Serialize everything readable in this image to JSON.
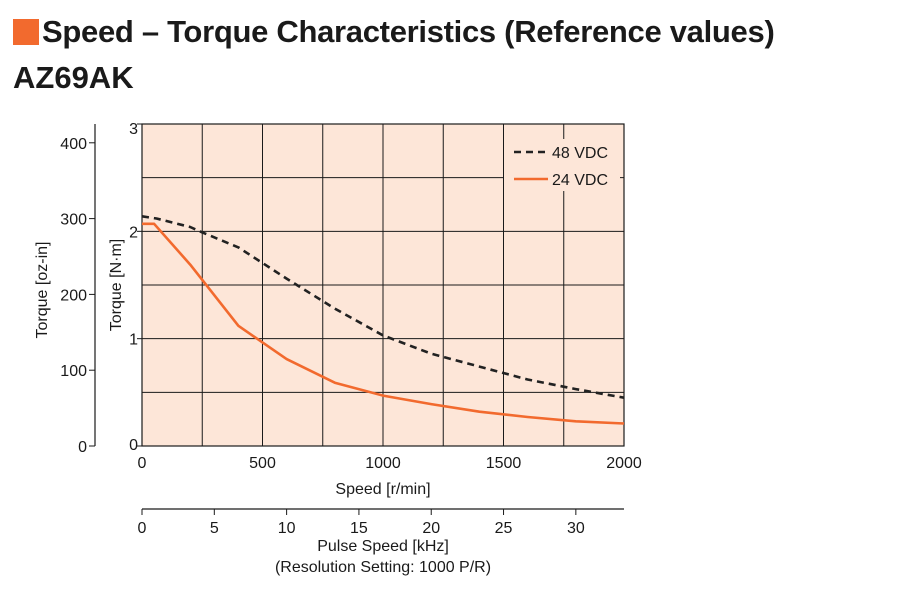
{
  "header": {
    "title": "Speed – Torque Characteristics (Reference values)",
    "model": "AZ69AK",
    "accent_color": "#f26a2e"
  },
  "chart_data": {
    "type": "line",
    "xlabel": "Speed [r/min]",
    "ylabel": "Torque [N·m]",
    "ylabel2": "Torque [oz-in]",
    "x2label": "Pulse Speed [kHz]",
    "x2label_sub": "(Resolution Setting: 1000 P/R)",
    "xlim": [
      0,
      2000
    ],
    "ylim": [
      0,
      3
    ],
    "y2lim_ozin": [
      0,
      424.8
    ],
    "x2lim_khz": [
      0,
      33.33
    ],
    "xticks": [
      "0",
      "500",
      "1000",
      "1500",
      "2000"
    ],
    "yticks": [
      "0",
      "1",
      "2",
      "3"
    ],
    "y2ticks": [
      "0",
      "100",
      "200",
      "300",
      "400"
    ],
    "x2ticks": [
      "0",
      "5",
      "10",
      "15",
      "20",
      "25",
      "30"
    ],
    "grid": true,
    "plot_background": "#fde6d8",
    "legend_position": "top-right",
    "series": [
      {
        "name": "48 VDC",
        "color": "#222222",
        "dash": true,
        "x": [
          0,
          60,
          200,
          250,
          400,
          600,
          800,
          1000,
          1200,
          1400,
          1600,
          1800,
          2000
        ],
        "y": [
          2.14,
          2.12,
          2.04,
          1.99,
          1.85,
          1.56,
          1.28,
          1.03,
          0.86,
          0.74,
          0.62,
          0.53,
          0.45
        ]
      },
      {
        "name": "24 VDC",
        "color": "#f26a2e",
        "dash": false,
        "x": [
          0,
          50,
          200,
          400,
          600,
          800,
          1000,
          1200,
          1400,
          1600,
          1800,
          2000
        ],
        "y": [
          2.07,
          2.07,
          1.69,
          1.12,
          0.81,
          0.59,
          0.47,
          0.39,
          0.32,
          0.27,
          0.23,
          0.21
        ]
      }
    ]
  }
}
